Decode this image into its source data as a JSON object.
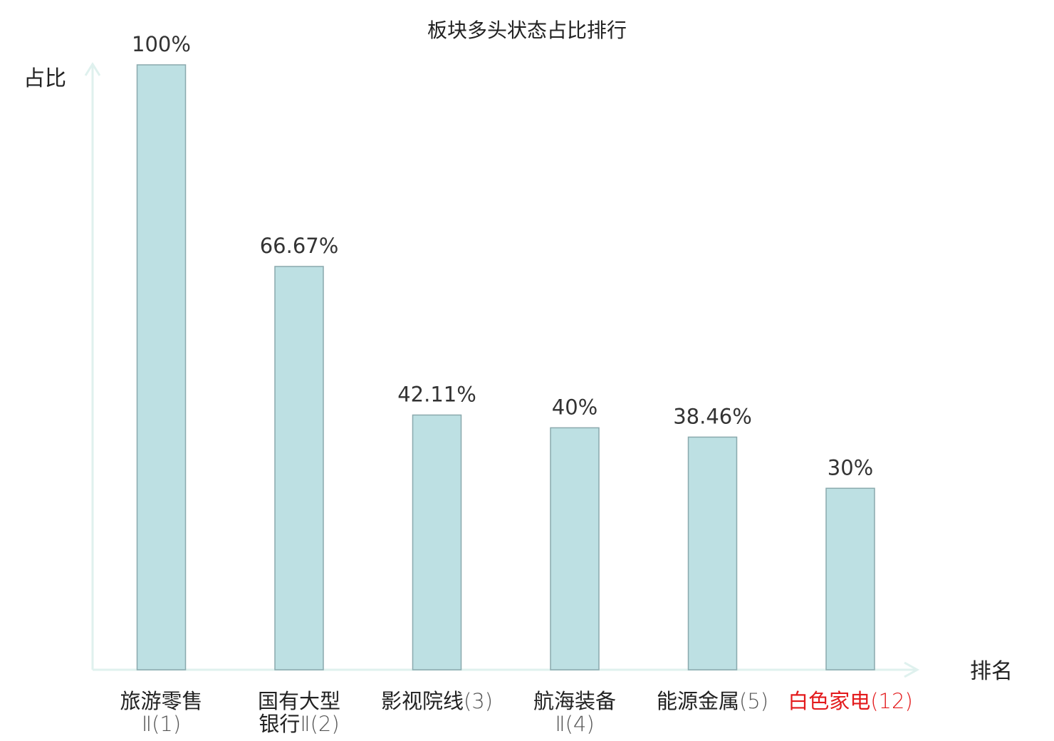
{
  "chart_data": {
    "type": "bar",
    "title": "板块多头状态占比排行",
    "xlabel": "排名",
    "ylabel": "占比",
    "ylim": [
      0,
      100
    ],
    "grid": false,
    "categories": [
      {
        "lines": [
          {
            "name": "旅游零售",
            "num": ""
          },
          {
            "name": "",
            "num": "Ⅱ(1)"
          }
        ],
        "highlight": false
      },
      {
        "lines": [
          {
            "name": "国有大型",
            "num": ""
          },
          {
            "name": "银行",
            "num": "Ⅱ(2)"
          }
        ],
        "highlight": false
      },
      {
        "lines": [
          {
            "name": "影视院线",
            "num": "(3)"
          }
        ],
        "highlight": false
      },
      {
        "lines": [
          {
            "name": "航海装备",
            "num": ""
          },
          {
            "name": "",
            "num": "Ⅱ(4)"
          }
        ],
        "highlight": false
      },
      {
        "lines": [
          {
            "name": "能源金属",
            "num": "(5)"
          }
        ],
        "highlight": false
      },
      {
        "lines": [
          {
            "name": "白色家电",
            "num": "(12)"
          }
        ],
        "highlight": true
      }
    ],
    "values": [
      100,
      66.67,
      42.11,
      40,
      38.46,
      30
    ],
    "value_labels": [
      "100%",
      "66.67%",
      "42.11%",
      "40%",
      "38.46%",
      "30%"
    ],
    "colors": {
      "bar_fill": "#bde0e3",
      "bar_stroke": "#8aa9ad",
      "axis": "#dff1ee",
      "highlight": "#e31a1c"
    }
  }
}
